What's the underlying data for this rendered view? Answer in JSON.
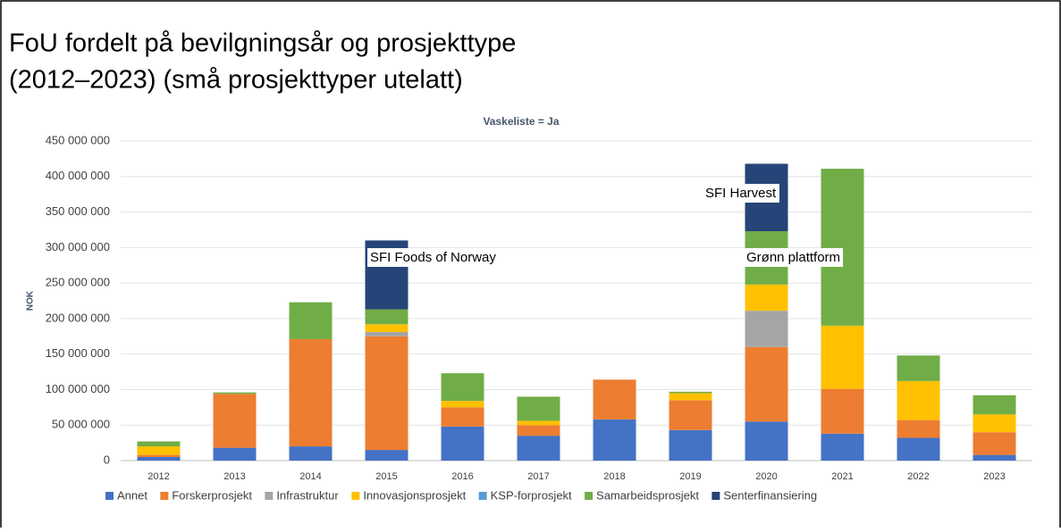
{
  "chart_data": {
    "type": "stacked_bar",
    "title": "FoU fordelt på bevilgningsår og prosjekttype",
    "title2": "(2012–2023) (små prosjekttyper utelatt)",
    "subtitle": "Vaskeliste = Ja",
    "ylabel": "NOK",
    "categories": [
      "2012",
      "2013",
      "2014",
      "2015",
      "2016",
      "2017",
      "2018",
      "2019",
      "2020",
      "2021",
      "2022",
      "2023"
    ],
    "series": [
      {
        "name": "Annet",
        "color": "#4472c4",
        "values": [
          5000000,
          18000000,
          20000000,
          15000000,
          48000000,
          35000000,
          58000000,
          43000000,
          55000000,
          38000000,
          32000000,
          8000000
        ]
      },
      {
        "name": "Forskerprosjekt",
        "color": "#ed7d31",
        "values": [
          3000000,
          76000000,
          151000000,
          160000000,
          27000000,
          15000000,
          56000000,
          42000000,
          105000000,
          63000000,
          25000000,
          32000000
        ]
      },
      {
        "name": "Infrastruktur",
        "color": "#a5a5a5",
        "values": [
          0,
          0,
          0,
          6000000,
          0,
          0,
          0,
          0,
          51000000,
          0,
          0,
          0
        ]
      },
      {
        "name": "Innovasjonsprosjekt",
        "color": "#ffc000",
        "values": [
          12000000,
          0,
          0,
          11000000,
          9000000,
          6000000,
          0,
          10000000,
          37000000,
          89000000,
          55000000,
          25000000
        ]
      },
      {
        "name": "KSP-forprosjekt",
        "color": "#5b9bd5",
        "values": [
          0,
          0,
          0,
          0,
          0,
          0,
          0,
          0,
          0,
          0,
          0,
          0
        ]
      },
      {
        "name": "Samarbeidsprosjekt",
        "color": "#70ad47",
        "values": [
          7000000,
          2000000,
          52000000,
          21000000,
          39000000,
          34000000,
          0,
          2000000,
          75000000,
          221000000,
          36000000,
          27000000
        ]
      },
      {
        "name": "Senterfinansiering",
        "color": "#264478",
        "values": [
          0,
          0,
          0,
          97000000,
          0,
          0,
          0,
          0,
          95000000,
          0,
          0,
          0
        ]
      }
    ],
    "ylim": [
      0,
      450000000
    ],
    "yticks": [
      {
        "value": 0,
        "label": "0"
      },
      {
        "value": 50000000,
        "label": "50 000 000"
      },
      {
        "value": 100000000,
        "label": "100 000 000"
      },
      {
        "value": 150000000,
        "label": "150 000 000"
      },
      {
        "value": 200000000,
        "label": "200 000 000"
      },
      {
        "value": 250000000,
        "label": "250 000 000"
      },
      {
        "value": 300000000,
        "label": "300 000 000"
      },
      {
        "value": 350000000,
        "label": "350 000 000"
      },
      {
        "value": 400000000,
        "label": "400 000 000"
      },
      {
        "value": 450000000,
        "label": "450 000 000"
      }
    ],
    "grid": true,
    "legend": "bottom",
    "annotations": [
      "SFI Foods of Norway",
      "SFI Harvest",
      "Grønn plattform"
    ]
  }
}
